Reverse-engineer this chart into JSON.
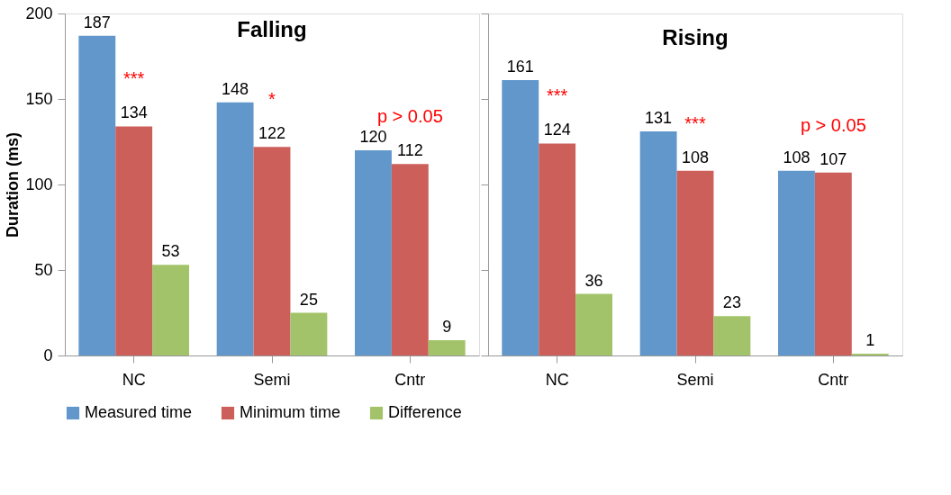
{
  "chart_data": [
    {
      "type": "bar",
      "title": "Falling",
      "ylabel": "Duration (ms)",
      "categories": [
        "NC",
        "Semi",
        "Cntr"
      ],
      "series": [
        {
          "name": "Measured time",
          "color": "#6197cb",
          "values": [
            187,
            148,
            120
          ]
        },
        {
          "name": "Minimum time",
          "color": "#cd5f5b",
          "values": [
            134,
            122,
            112
          ]
        },
        {
          "name": "Difference",
          "color": "#a3c36b",
          "values": [
            53,
            25,
            9
          ]
        }
      ],
      "ylim": [
        0,
        200
      ],
      "yticks": [
        0,
        50,
        100,
        150,
        200
      ],
      "data_labels": true,
      "grid": false,
      "legend": "bottom",
      "annotations": [
        "***",
        "*",
        "p > 0.05"
      ]
    },
    {
      "type": "bar",
      "title": "Rising",
      "categories": [
        "NC",
        "Semi",
        "Cntr"
      ],
      "series": [
        {
          "name": "Measured time",
          "color": "#6197cb",
          "values": [
            161,
            131,
            108
          ]
        },
        {
          "name": "Minimum time",
          "color": "#cd5f5b",
          "values": [
            124,
            108,
            107
          ]
        },
        {
          "name": "Difference",
          "color": "#a3c36b",
          "values": [
            36,
            23,
            1
          ]
        }
      ],
      "ylim": [
        0,
        200
      ],
      "yticks": [
        0,
        50,
        100,
        150,
        200
      ],
      "tick_labels": "x",
      "data_labels": true,
      "grid": false,
      "legend": "bottom",
      "annotations": [
        "***",
        "***",
        "p > 0.05"
      ]
    }
  ]
}
